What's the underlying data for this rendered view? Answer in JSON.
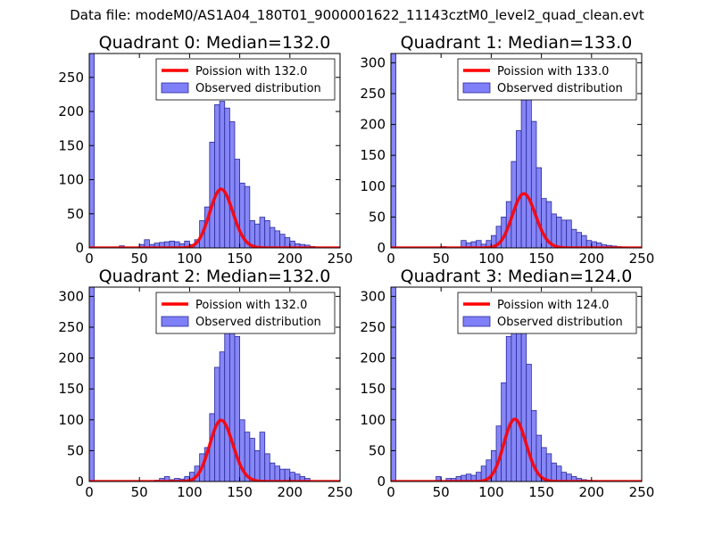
{
  "suptitle": "Data file: modeM0/AS1A04_180T01_9000001622_11143cztM0_level2_quad_clean.evt",
  "colors": {
    "bar_fill": "#7f7ff7",
    "bar_edge": "#2a2a9a",
    "poisson_line": "#ff0000",
    "frame": "#000000"
  },
  "chart_data": [
    {
      "type": "bar",
      "title": "Quadrant 0: Median=132.0",
      "median": 132.0,
      "legend": [
        "Poission with 132.0",
        "Observed distribution"
      ],
      "legend_position": "top-right",
      "xlim": [
        0,
        250
      ],
      "ylim": [
        0,
        285
      ],
      "xticks": [
        0,
        50,
        100,
        150,
        200,
        250
      ],
      "yticks": [
        0,
        50,
        100,
        150,
        200,
        250
      ],
      "bin_width": 5,
      "bins_start": [
        0,
        30,
        50,
        55,
        60,
        65,
        70,
        75,
        80,
        85,
        90,
        95,
        100,
        105,
        110,
        115,
        120,
        125,
        130,
        135,
        140,
        145,
        150,
        155,
        160,
        165,
        170,
        175,
        180,
        185,
        190,
        195,
        200,
        205,
        210,
        215,
        220
      ],
      "values": [
        285,
        3,
        5,
        12,
        5,
        7,
        8,
        9,
        10,
        9,
        6,
        10,
        5,
        12,
        40,
        60,
        155,
        210,
        215,
        205,
        185,
        130,
        95,
        90,
        40,
        35,
        45,
        40,
        30,
        25,
        20,
        15,
        10,
        6,
        5,
        4,
        2
      ],
      "poisson_scale": 2480
    },
    {
      "type": "bar",
      "title": "Quadrant 1: Median=133.0",
      "median": 133.0,
      "legend": [
        "Poission with 133.0",
        "Observed distribution"
      ],
      "legend_position": "top-right",
      "xlim": [
        0,
        250
      ],
      "ylim": [
        0,
        315
      ],
      "xticks": [
        0,
        50,
        100,
        150,
        200,
        250
      ],
      "yticks": [
        0,
        50,
        100,
        150,
        200,
        250,
        300
      ],
      "bin_width": 5,
      "bins_start": [
        0,
        50,
        70,
        75,
        80,
        85,
        90,
        95,
        100,
        105,
        110,
        115,
        120,
        125,
        130,
        135,
        140,
        145,
        150,
        155,
        160,
        165,
        170,
        175,
        180,
        185,
        190,
        195,
        200,
        205,
        210,
        215,
        220,
        225,
        230
      ],
      "values": [
        315,
        2,
        12,
        8,
        10,
        12,
        6,
        12,
        20,
        35,
        50,
        75,
        140,
        190,
        240,
        285,
        205,
        130,
        80,
        75,
        55,
        50,
        45,
        45,
        30,
        25,
        20,
        12,
        10,
        8,
        5,
        4,
        3,
        2,
        1
      ],
      "poisson_scale": 2540
    },
    {
      "type": "bar",
      "title": "Quadrant 2: Median=132.0",
      "median": 132.0,
      "legend": [
        "Poission with 132.0",
        "Observed distribution"
      ],
      "legend_position": "top-right",
      "xlim": [
        0,
        250
      ],
      "ylim": [
        0,
        315
      ],
      "xticks": [
        0,
        50,
        100,
        150,
        200,
        250
      ],
      "yticks": [
        0,
        50,
        100,
        150,
        200,
        250,
        300
      ],
      "bin_width": 5,
      "bins_start": [
        0,
        65,
        70,
        75,
        80,
        85,
        90,
        95,
        100,
        105,
        110,
        115,
        120,
        125,
        130,
        135,
        140,
        145,
        150,
        155,
        160,
        165,
        170,
        175,
        180,
        185,
        190,
        195,
        200,
        205,
        210,
        215
      ],
      "values": [
        315,
        2,
        5,
        8,
        3,
        5,
        4,
        8,
        15,
        25,
        45,
        55,
        110,
        185,
        210,
        260,
        240,
        235,
        100,
        80,
        70,
        50,
        80,
        45,
        30,
        25,
        20,
        20,
        15,
        12,
        8,
        5
      ],
      "poisson_scale": 2860
    },
    {
      "type": "bar",
      "title": "Quadrant 3: Median=124.0",
      "median": 124.0,
      "legend": [
        "Poission with 124.0",
        "Observed distribution"
      ],
      "legend_position": "top-right",
      "xlim": [
        0,
        250
      ],
      "ylim": [
        0,
        315
      ],
      "xticks": [
        0,
        50,
        100,
        150,
        200,
        250
      ],
      "yticks": [
        0,
        50,
        100,
        150,
        200,
        250,
        300
      ],
      "bin_width": 5,
      "bins_start": [
        0,
        45,
        55,
        60,
        65,
        70,
        75,
        80,
        85,
        90,
        95,
        100,
        105,
        110,
        115,
        120,
        125,
        130,
        135,
        140,
        145,
        150,
        155,
        160,
        165,
        170,
        175,
        180,
        185,
        190,
        195,
        200
      ],
      "values": [
        315,
        8,
        5,
        5,
        8,
        10,
        12,
        10,
        15,
        25,
        35,
        50,
        90,
        160,
        235,
        260,
        280,
        250,
        190,
        115,
        75,
        55,
        45,
        30,
        25,
        15,
        12,
        8,
        5,
        3,
        2,
        1
      ],
      "poisson_scale": 2820
    }
  ]
}
